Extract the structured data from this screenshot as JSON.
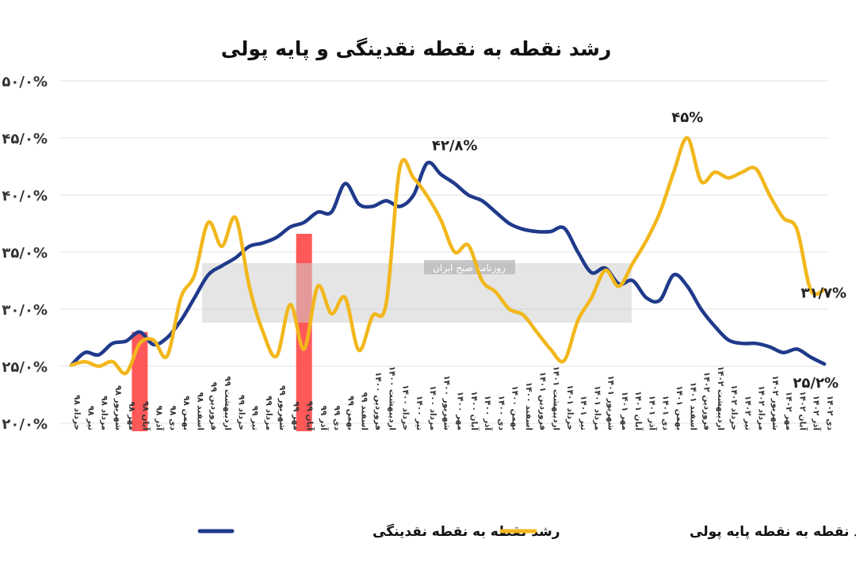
{
  "chart_data": {
    "type": "line",
    "title": "رشد نقطه به نقطه نقدینگی و پایه پولی",
    "xlabel": "",
    "ylabel": "",
    "ylim": [
      20,
      50
    ],
    "y_ticks": [
      {
        "value": 20,
        "label": "۲۰/۰%"
      },
      {
        "value": 25,
        "label": "۲۵/۰%"
      },
      {
        "value": 30,
        "label": "۳۰/۰%"
      },
      {
        "value": 35,
        "label": "۳۵/۰%"
      },
      {
        "value": 40,
        "label": "۴۰/۰%"
      },
      {
        "value": 45,
        "label": "۴۵/۰%"
      },
      {
        "value": 50,
        "label": "۵۰/۰%"
      }
    ],
    "grid": true,
    "legend_position": "bottom",
    "categories": [
      "خرداد ۹۸",
      "تیر ۹۸",
      "مرداد ۹۸",
      "شهریور ۹۸",
      "مهر ۹۸",
      "آبان ۹۸",
      "آذر ۹۸",
      "دی ۹۸",
      "بهمن ۹۸",
      "اسفند ۹۸",
      "فروردین ۹۹",
      "اردیبهشت ۹۹",
      "خرداد ۹۹",
      "تیر ۹۹",
      "مرداد ۹۹",
      "شهریور ۹۹",
      "مهر ۹۹",
      "آبان ۹۹",
      "آذر ۹۹",
      "دی ۹۹",
      "بهمن ۹۹",
      "اسفند ۹۹",
      "فروردین ۱۴۰۰",
      "اردیبهشت ۱۴۰۰",
      "خرداد ۱۴۰۰",
      "تیر ۱۴۰۰",
      "مرداد ۱۴۰۰",
      "شهریور ۱۴۰۰",
      "مهر ۱۴۰۰",
      "آبان ۱۴۰۰",
      "آذر ۱۴۰۰",
      "دی ۱۴۰۰",
      "بهمن ۱۴۰۰",
      "اسفند ۱۴۰۰",
      "فروردین ۱۴۰۱",
      "اردیبهشت ۱۴۰۱",
      "خرداد ۱۴۰۱",
      "تیر ۱۴۰۱",
      "مرداد ۱۴۰۱",
      "شهریور ۱۴۰۱",
      "مهر ۱۴۰۱",
      "آبان ۱۴۰۱",
      "آذر ۱۴۰۱",
      "دی ۱۴۰۱",
      "بهمن ۱۴۰۱",
      "اسفند ۱۴۰۱",
      "فروردین ۱۴۰۲",
      "اردیبهشت ۱۴۰۲",
      "خرداد ۱۴۰۲",
      "تیر ۱۴۰۲",
      "مرداد ۱۴۰۲",
      "شهریور ۱۴۰۲",
      "مهر ۱۴۰۲",
      "آبان ۱۴۰۲",
      "آذر ۱۴۰۲",
      "دی ۱۴۰۲"
    ],
    "series": [
      {
        "name": "رشد نقطه به نقطه نقدینگی",
        "color": "#1f3a8a",
        "values": [
          25.1,
          26.2,
          26.0,
          27.0,
          27.2,
          28.0,
          26.9,
          27.5,
          29.0,
          31.0,
          33.0,
          33.8,
          34.5,
          35.5,
          35.8,
          36.3,
          37.2,
          37.6,
          38.5,
          38.5,
          41.0,
          39.2,
          39.0,
          39.5,
          39.0,
          40.0,
          42.8,
          41.8,
          41.0,
          40.0,
          39.5,
          38.5,
          37.5,
          37.0,
          36.8,
          36.8,
          37.1,
          35.0,
          33.2,
          33.6,
          32.2,
          32.5,
          31.0,
          30.8,
          33.0,
          32.0,
          30.0,
          28.5,
          27.3,
          27.0,
          27.0,
          26.7,
          26.2,
          26.5,
          25.8,
          25.2
        ]
      },
      {
        "name": "رشد نقطه به نقطه پایه پولی",
        "color": "#f2b71c",
        "values": [
          25.1,
          25.4,
          25.0,
          25.4,
          24.4,
          27.0,
          27.3,
          25.9,
          31.0,
          33.0,
          37.6,
          35.5,
          38.0,
          32.0,
          28.0,
          25.9,
          30.4,
          26.5,
          32.0,
          29.6,
          31.0,
          26.4,
          29.4,
          30.5,
          42.4,
          41.5,
          39.9,
          37.8,
          35.0,
          35.6,
          32.5,
          31.5,
          30.0,
          29.5,
          28.0,
          26.5,
          25.5,
          29.0,
          31.0,
          33.4,
          32.0,
          34.0,
          36.0,
          38.5,
          42.0,
          45.0,
          41.2,
          42.0,
          41.5,
          42.0,
          42.3,
          40.0,
          38.0,
          37.0,
          31.7,
          31.7
        ]
      }
    ],
    "annotations": [
      {
        "text": "۴۲/۸%",
        "x": "مهر ۱۴۰۰",
        "y": 42.8,
        "series": 0
      },
      {
        "text": "۴۵%",
        "x": "اسفند ۱۴۰۱",
        "y": 45.0,
        "series": 1
      },
      {
        "text": "۳۱/۷%",
        "x": "دی ۱۴۰۲",
        "y": 31.7,
        "series": 1
      },
      {
        "text": "۲۵/۲%",
        "x": "دی ۱۴۰۲",
        "y": 25.2,
        "series": 0
      }
    ],
    "highlights": [
      {
        "x": "آبان ۹۸",
        "color": "#ff3b3b"
      },
      {
        "x": "آبان ۹۹",
        "color": "#ff3b3b"
      }
    ]
  },
  "watermark": {
    "agency": "روزنامه صبح ایران"
  }
}
